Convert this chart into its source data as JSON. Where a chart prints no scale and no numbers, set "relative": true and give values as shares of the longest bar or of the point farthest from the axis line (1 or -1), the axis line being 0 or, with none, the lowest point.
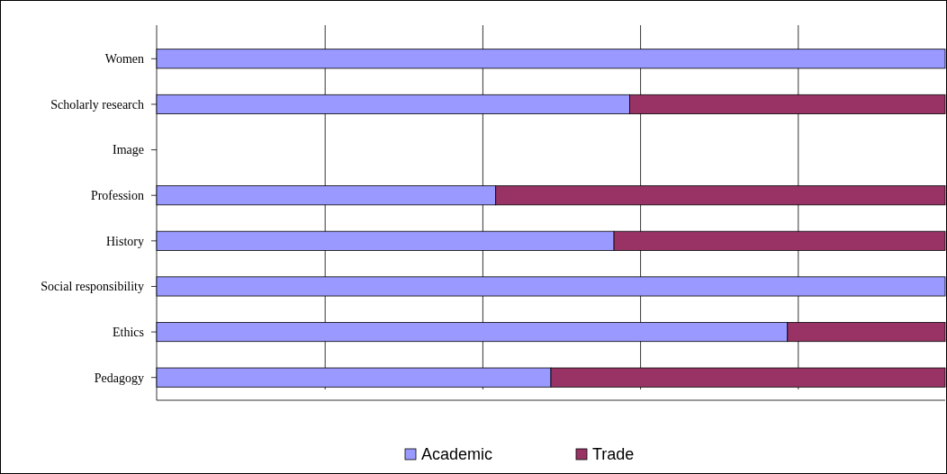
{
  "chart_data": {
    "type": "bar",
    "orientation": "horizontal",
    "stacked": true,
    "relative": true,
    "grid": "x",
    "legend": "bottom",
    "categories": [
      "Women",
      "Scholarly research",
      "Image",
      "Profession",
      "History",
      "Social responsibility",
      "Ethics",
      "Pedagogy"
    ],
    "series": [
      {
        "name": "Academic",
        "color": "#9999ff",
        "values": [
          1,
          0.6,
          0,
          0.43,
          0.58,
          1,
          0.8,
          0.5
        ]
      },
      {
        "name": "Trade",
        "color": "#993366",
        "values": [
          0,
          0.4,
          0,
          0.57,
          0.42,
          0,
          0.2,
          0.5
        ]
      }
    ]
  }
}
